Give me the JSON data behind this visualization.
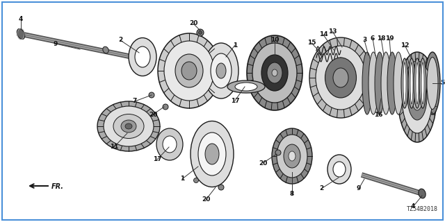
{
  "background_color": "#ffffff",
  "border_color": "#4a90d9",
  "diagram_code": "TZ54B2018",
  "line_color": "#1a1a1a",
  "text_color": "#111111",
  "label_fontsize": 6.5,
  "figsize": [
    6.4,
    3.2
  ],
  "dpi": 100,
  "xlim": [
    0,
    640
  ],
  "ylim": [
    0,
    320
  ]
}
